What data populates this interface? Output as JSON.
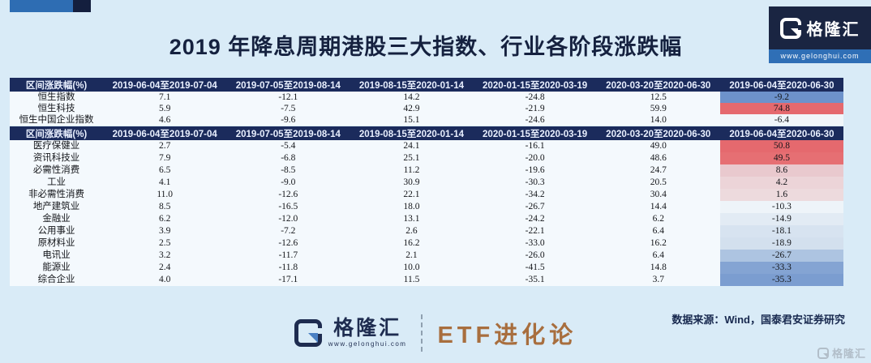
{
  "title": "2019 年降息周期港股三大指数、行业各阶段涨跌幅",
  "source_note": "数据来源：Wind，国泰君安证券研究",
  "brand": {
    "name": "格隆汇",
    "website": "www.gelonghui.com",
    "footer_account": "ETF进化论",
    "watermark_text": "格隆汇"
  },
  "colors": {
    "page_bg": "#d9ebf7",
    "table_header_bg": "#1b2b5c",
    "deco_blue": "#2e6db3",
    "deco_navy": "#141f3e",
    "gain_red": "#e5696e",
    "loss_blue": "#6d92cb",
    "etf_brown": "#a86e3e"
  },
  "chart_data": [
    {
      "type": "table",
      "columns": [
        "区间涨跌幅(%)",
        "2019-06-04至2019-07-04",
        "2019-07-05至2019-08-14",
        "2019-08-15至2020-01-14",
        "2020-01-15至2020-03-19",
        "2020-03-20至2020-06-30",
        "2019-06-04至2020-06-30"
      ],
      "rows": [
        {
          "label": "恒生指数",
          "values": [
            "7.1",
            "-12.1",
            "14.2",
            "-24.8",
            "12.5",
            "-9.2"
          ],
          "final_color": "#6d92cb"
        },
        {
          "label": "恒生科技",
          "values": [
            "5.9",
            "-7.5",
            "42.9",
            "-21.9",
            "59.9",
            "74.8"
          ],
          "final_color": "#e5696e"
        },
        {
          "label": "恒生中国企业指数",
          "values": [
            "4.6",
            "-9.6",
            "15.1",
            "-24.6",
            "14.0",
            "-6.4"
          ],
          "final_color": "#f1f6fa"
        }
      ]
    },
    {
      "type": "table",
      "columns": [
        "区间涨跌幅(%)",
        "2019-06-04至2019-07-04",
        "2019-07-05至2019-08-14",
        "2019-08-15至2020-01-14",
        "2020-01-15至2020-03-19",
        "2020-03-20至2020-06-30",
        "2019-06-04至2020-06-30"
      ],
      "rows": [
        {
          "label": "医疗保健业",
          "values": [
            "2.7",
            "-5.4",
            "24.1",
            "-16.1",
            "49.0",
            "50.8"
          ],
          "final_color": "#e5696e"
        },
        {
          "label": "资讯科技业",
          "values": [
            "7.9",
            "-6.8",
            "25.1",
            "-20.0",
            "48.6",
            "49.5"
          ],
          "final_color": "#e66f73"
        },
        {
          "label": "必需性消费",
          "values": [
            "6.5",
            "-8.5",
            "11.2",
            "-19.6",
            "24.7",
            "8.6"
          ],
          "final_color": "#e9c9ce"
        },
        {
          "label": "工业",
          "values": [
            "4.1",
            "-9.0",
            "30.9",
            "-30.3",
            "20.5",
            "4.2"
          ],
          "final_color": "#ecd4d8"
        },
        {
          "label": "非必需性消费",
          "values": [
            "11.0",
            "-12.6",
            "22.1",
            "-34.2",
            "30.4",
            "1.6"
          ],
          "final_color": "#eddadd"
        },
        {
          "label": "地产建筑业",
          "values": [
            "8.5",
            "-16.5",
            "18.0",
            "-26.7",
            "14.4",
            "-10.3"
          ],
          "final_color": "#eef4f9"
        },
        {
          "label": "金融业",
          "values": [
            "6.2",
            "-12.0",
            "13.1",
            "-24.2",
            "6.2",
            "-14.9"
          ],
          "final_color": "#e2ebf4"
        },
        {
          "label": "公用事业",
          "values": [
            "3.9",
            "-7.2",
            "2.6",
            "-22.1",
            "6.4",
            "-18.1"
          ],
          "final_color": "#d7e3f0"
        },
        {
          "label": "原材料业",
          "values": [
            "2.5",
            "-12.6",
            "16.2",
            "-33.0",
            "16.2",
            "-18.9"
          ],
          "final_color": "#d3e0ee"
        },
        {
          "label": "电讯业",
          "values": [
            "3.2",
            "-11.7",
            "2.1",
            "-26.0",
            "6.4",
            "-26.7"
          ],
          "final_color": "#adc4e1"
        },
        {
          "label": "能源业",
          "values": [
            "2.4",
            "-11.8",
            "10.0",
            "-41.5",
            "14.8",
            "-33.3"
          ],
          "final_color": "#84a4d3"
        },
        {
          "label": "综合企业",
          "values": [
            "4.0",
            "-17.1",
            "11.5",
            "-35.1",
            "3.7",
            "-35.3"
          ],
          "final_color": "#7b9dd0"
        }
      ]
    }
  ]
}
